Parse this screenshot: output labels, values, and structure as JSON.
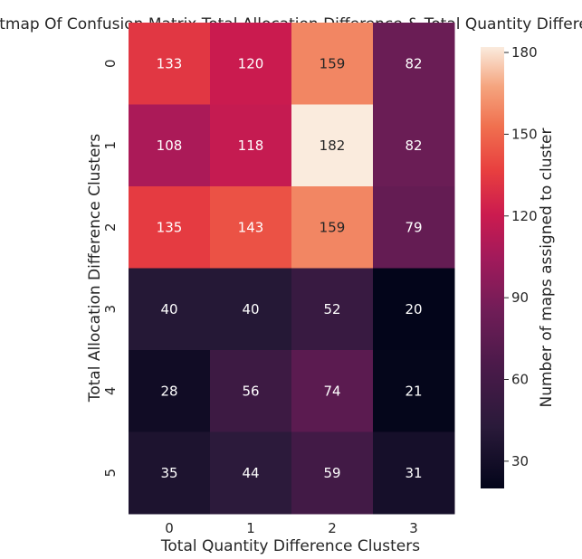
{
  "chart_data": {
    "type": "heatmap",
    "title": "Heatmap Of Confusion Matrix Total Allocation Difference & Total Quantity Difference",
    "xlabel": "Total Quantity Difference Clusters",
    "ylabel": "Total Allocation Difference Clusters",
    "x_categories": [
      "0",
      "1",
      "2",
      "3"
    ],
    "y_categories": [
      "0",
      "1",
      "2",
      "3",
      "4",
      "5"
    ],
    "values": [
      [
        133,
        120,
        159,
        82
      ],
      [
        108,
        118,
        182,
        82
      ],
      [
        135,
        143,
        159,
        79
      ],
      [
        40,
        40,
        52,
        20
      ],
      [
        28,
        56,
        74,
        21
      ],
      [
        35,
        44,
        59,
        31
      ]
    ],
    "colorbar": {
      "label": "Number of maps assigned to cluster",
      "ticks": [
        30,
        60,
        90,
        120,
        150,
        180
      ],
      "range": [
        20,
        182
      ],
      "colormap": "rocket"
    }
  }
}
